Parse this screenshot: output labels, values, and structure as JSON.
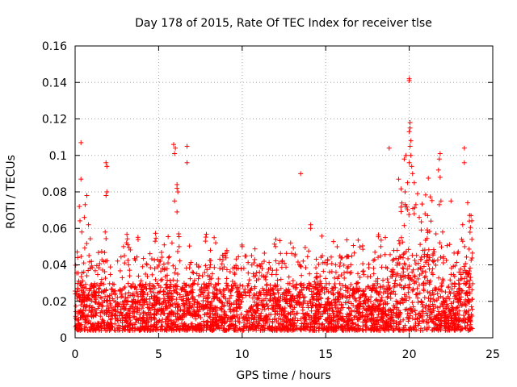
{
  "chart_data": {
    "type": "scatter",
    "title": "Day 178 of 2015, Rate Of TEC Index for receiver tlse",
    "xlabel": "GPS time / hours",
    "ylabel": "ROTI / TECUs",
    "xlim": [
      0,
      25
    ],
    "ylim": [
      0,
      0.16
    ],
    "xticks": [
      0,
      5,
      10,
      15,
      20,
      25
    ],
    "yticks": [
      0,
      0.02,
      0.04,
      0.06,
      0.08,
      0.1,
      0.12,
      0.14,
      0.16
    ],
    "xtick_labels": [
      "0",
      "5",
      "10",
      "15",
      "20",
      "25"
    ],
    "ytick_labels": [
      "0",
      "0.02",
      "0.04",
      "0.06",
      "0.08",
      "0.1",
      "0.12",
      "0.14",
      "0.16"
    ],
    "grid": true,
    "marker": "+",
    "color": "#ff0000",
    "x_data_range": [
      0,
      23.8
    ],
    "series": [
      {
        "name": "ROTI",
        "points": [
          [
            0.35,
            0.107
          ],
          [
            0.35,
            0.087
          ],
          [
            0.7,
            0.078
          ],
          [
            0.6,
            0.073
          ],
          [
            0.25,
            0.072
          ],
          [
            0.55,
            0.066
          ],
          [
            0.8,
            0.062
          ],
          [
            0.4,
            0.058
          ],
          [
            0.15,
            0.044
          ],
          [
            0.9,
            0.038
          ],
          [
            1.85,
            0.096
          ],
          [
            1.9,
            0.094
          ],
          [
            1.9,
            0.08
          ],
          [
            1.85,
            0.078
          ],
          [
            1.8,
            0.058
          ],
          [
            2.9,
            0.05
          ],
          [
            2.95,
            0.045
          ],
          [
            3.2,
            0.04
          ],
          [
            4.3,
            0.04
          ],
          [
            5.9,
            0.106
          ],
          [
            6.0,
            0.104
          ],
          [
            5.95,
            0.101
          ],
          [
            6.1,
            0.084
          ],
          [
            6.1,
            0.082
          ],
          [
            6.15,
            0.08
          ],
          [
            5.95,
            0.075
          ],
          [
            6.1,
            0.069
          ],
          [
            5.8,
            0.052
          ],
          [
            6.2,
            0.057
          ],
          [
            6.7,
            0.105
          ],
          [
            6.7,
            0.096
          ],
          [
            7.8,
            0.053
          ],
          [
            8.1,
            0.048
          ],
          [
            9.0,
            0.045
          ],
          [
            10.0,
            0.05
          ],
          [
            12.0,
            0.05
          ],
          [
            12.9,
            0.052
          ],
          [
            13.5,
            0.09
          ],
          [
            14.1,
            0.062
          ],
          [
            14.1,
            0.06
          ],
          [
            14.8,
            0.045
          ],
          [
            15.6,
            0.04
          ],
          [
            16.5,
            0.04
          ],
          [
            18.3,
            0.05
          ],
          [
            18.8,
            0.104
          ],
          [
            19.8,
            0.1
          ],
          [
            19.7,
            0.098
          ],
          [
            19.9,
            0.085
          ],
          [
            19.75,
            0.08
          ],
          [
            19.85,
            0.072
          ],
          [
            20.0,
            0.142
          ],
          [
            20.0,
            0.141
          ],
          [
            20.05,
            0.118
          ],
          [
            20.05,
            0.115
          ],
          [
            20.0,
            0.113
          ],
          [
            20.1,
            0.108
          ],
          [
            20.05,
            0.105
          ],
          [
            20.1,
            0.1
          ],
          [
            20.0,
            0.096
          ],
          [
            20.15,
            0.094
          ],
          [
            20.2,
            0.09
          ],
          [
            20.3,
            0.085
          ],
          [
            20.5,
            0.079
          ],
          [
            20.4,
            0.073
          ],
          [
            20.3,
            0.068
          ],
          [
            20.6,
            0.066
          ],
          [
            21.1,
            0.067
          ],
          [
            21.3,
            0.064
          ],
          [
            21.6,
            0.057
          ],
          [
            21.85,
            0.101
          ],
          [
            21.8,
            0.098
          ],
          [
            21.75,
            0.092
          ],
          [
            21.85,
            0.088
          ],
          [
            21.9,
            0.075
          ],
          [
            21.8,
            0.073
          ],
          [
            22.5,
            0.075
          ],
          [
            22.0,
            0.058
          ],
          [
            23.3,
            0.104
          ],
          [
            23.3,
            0.096
          ],
          [
            23.5,
            0.074
          ],
          [
            23.7,
            0.067
          ],
          [
            23.6,
            0.064
          ],
          [
            23.2,
            0.062
          ],
          [
            23.75,
            0.054
          ]
        ]
      }
    ]
  }
}
